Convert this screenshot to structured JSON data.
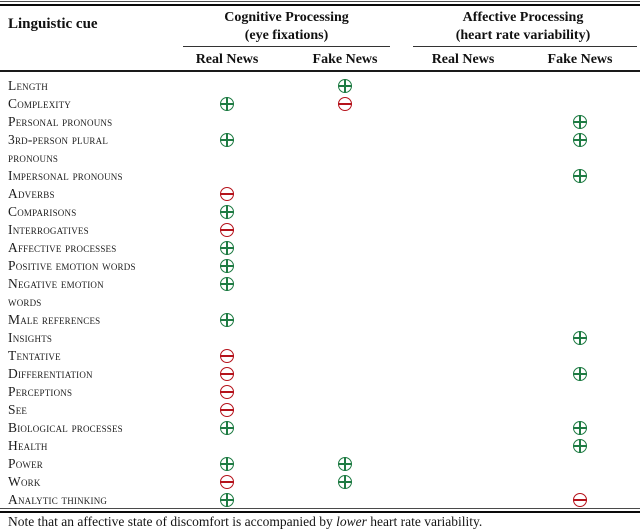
{
  "table": {
    "cue_header": "Linguistic cue",
    "groups": [
      {
        "title": "Cognitive Processing",
        "subtitle": "(eye fixations)",
        "columns": [
          "Real News",
          "Fake News"
        ]
      },
      {
        "title": "Affective Processing",
        "subtitle": "(heart rate variability)",
        "columns": [
          "Real News",
          "Fake News"
        ]
      }
    ],
    "column_keys": [
      "cognitive-real-news",
      "cognitive-fake-news",
      "affective-real-news",
      "affective-fake-news"
    ],
    "rows": [
      {
        "lines": [
          "Length"
        ],
        "cells": [
          "",
          "plus",
          "",
          ""
        ]
      },
      {
        "lines": [
          "Complexity"
        ],
        "cells": [
          "plus",
          "minus",
          "",
          ""
        ]
      },
      {
        "lines": [
          "Personal pronouns"
        ],
        "cells": [
          "",
          "",
          "",
          "plus"
        ]
      },
      {
        "lines": [
          "3rd-person plural",
          "pronouns"
        ],
        "cells": [
          "plus",
          "",
          "",
          "plus"
        ]
      },
      {
        "lines": [
          "Impersonal pronouns"
        ],
        "cells": [
          "",
          "",
          "",
          "plus"
        ]
      },
      {
        "lines": [
          "Adverbs"
        ],
        "cells": [
          "minus",
          "",
          "",
          ""
        ]
      },
      {
        "lines": [
          "Comparisons"
        ],
        "cells": [
          "plus",
          "",
          "",
          ""
        ]
      },
      {
        "lines": [
          "Interrogatives"
        ],
        "cells": [
          "minus",
          "",
          "",
          ""
        ]
      },
      {
        "lines": [
          "Affective processes"
        ],
        "cells": [
          "plus",
          "",
          "",
          ""
        ]
      },
      {
        "lines": [
          "Positive emotion words"
        ],
        "cells": [
          "plus",
          "",
          "",
          ""
        ]
      },
      {
        "lines": [
          "Negative emotion",
          "words"
        ],
        "cells": [
          "plus",
          "",
          "",
          ""
        ]
      },
      {
        "lines": [
          "Male references"
        ],
        "cells": [
          "plus",
          "",
          "",
          ""
        ]
      },
      {
        "lines": [
          "Insights"
        ],
        "cells": [
          "",
          "",
          "",
          "plus"
        ]
      },
      {
        "lines": [
          "Tentative"
        ],
        "cells": [
          "minus",
          "",
          "",
          ""
        ]
      },
      {
        "lines": [
          "Differentiation"
        ],
        "cells": [
          "minus",
          "",
          "",
          "plus"
        ]
      },
      {
        "lines": [
          "Perceptions"
        ],
        "cells": [
          "minus",
          "",
          "",
          ""
        ]
      },
      {
        "lines": [
          "See"
        ],
        "cells": [
          "minus",
          "",
          "",
          ""
        ]
      },
      {
        "lines": [
          "Biological processes"
        ],
        "cells": [
          "plus",
          "",
          "",
          "plus"
        ]
      },
      {
        "lines": [
          "Health"
        ],
        "cells": [
          "",
          "",
          "",
          "plus"
        ]
      },
      {
        "lines": [
          "Power"
        ],
        "cells": [
          "plus",
          "plus",
          "",
          ""
        ]
      },
      {
        "lines": [
          "Work"
        ],
        "cells": [
          "minus",
          "plus",
          "",
          ""
        ]
      },
      {
        "lines": [
          "Analytic thinking"
        ],
        "cells": [
          "plus",
          "",
          "",
          "minus"
        ]
      }
    ],
    "note": {
      "prefix": "Note that an affective state of discomfort is accompanied by ",
      "italic": "lower",
      "suffix": " heart rate variability."
    }
  },
  "colors": {
    "positive": "#1e7b43",
    "negative": "#b5121b"
  }
}
